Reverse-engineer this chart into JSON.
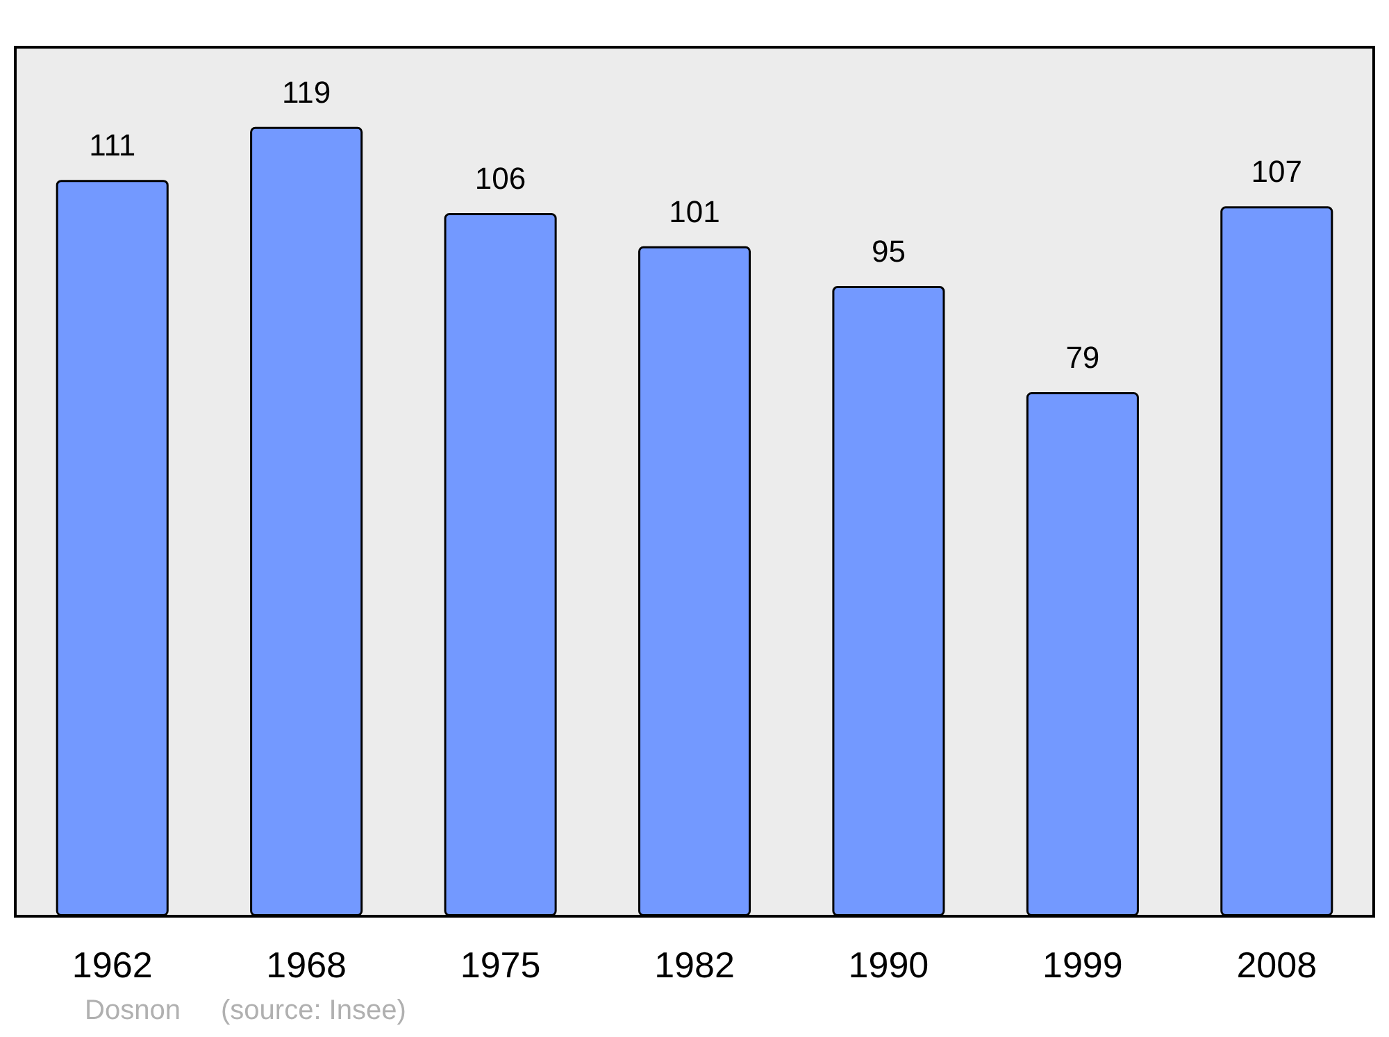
{
  "chart_data": {
    "type": "bar",
    "categories": [
      "1962",
      "1968",
      "1975",
      "1982",
      "1990",
      "1999",
      "2008"
    ],
    "values": [
      111,
      119,
      106,
      101,
      95,
      79,
      107
    ],
    "color": "#7399ff",
    "ylim": [
      0,
      131
    ],
    "data_labels": true,
    "grid": false,
    "tick_labels": "x",
    "annotations": [
      "Dosnon",
      "(source: Insee)"
    ]
  }
}
